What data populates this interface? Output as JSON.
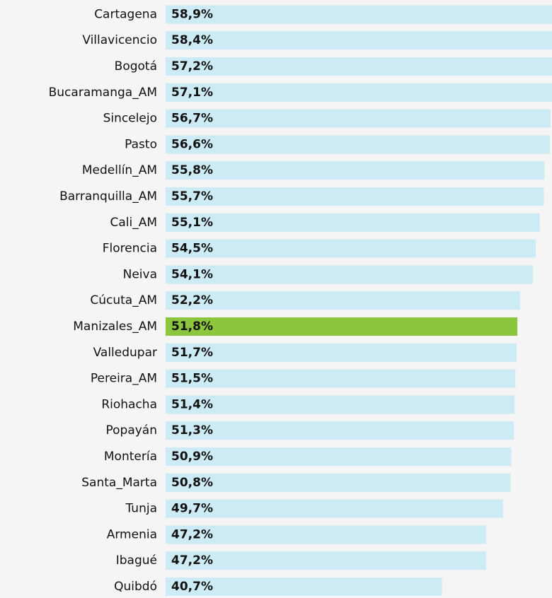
{
  "chart_data": {
    "type": "bar",
    "orientation": "horizontal",
    "categories": [
      "Cartagena",
      "Villavicencio",
      "Bogotá",
      "Bucaramanga_AM",
      "Sincelejo",
      "Pasto",
      "Medellín_AM",
      "Barranquilla_AM",
      "Cali_AM",
      "Florencia",
      "Neiva",
      "Cúcuta_AM",
      "Manizales_AM",
      "Valledupar",
      "Pereira_AM",
      "Riohacha",
      "Popayán",
      "Montería",
      "Santa_Marta",
      "Tunja",
      "Armenia",
      "Ibagué",
      "Quibdó"
    ],
    "values": [
      58.9,
      58.4,
      57.2,
      57.1,
      56.7,
      56.6,
      55.8,
      55.7,
      55.1,
      54.5,
      54.1,
      52.2,
      51.8,
      51.7,
      51.5,
      51.4,
      51.3,
      50.9,
      50.8,
      49.7,
      47.2,
      47.2,
      40.7
    ],
    "value_labels": [
      "58,9%",
      "58,4%",
      "57,2%",
      "57,1%",
      "56,7%",
      "56,6%",
      "55,8%",
      "55,7%",
      "55,1%",
      "54,5%",
      "54,1%",
      "52,2%",
      "51,8%",
      "51,7%",
      "51,5%",
      "51,4%",
      "51,3%",
      "50,9%",
      "50,8%",
      "49,7%",
      "47,2%",
      "47,2%",
      "40,7%"
    ],
    "colors": [
      "#cdebf5",
      "#cdebf5",
      "#cdebf5",
      "#cdebf5",
      "#cdebf5",
      "#cdebf5",
      "#cdebf5",
      "#cdebf5",
      "#cdebf5",
      "#cdebf5",
      "#cdebf5",
      "#cdebf5",
      "#8cc63f",
      "#cdebf5",
      "#cdebf5",
      "#cdebf5",
      "#cdebf5",
      "#cdebf5",
      "#cdebf5",
      "#cdebf5",
      "#cdebf5",
      "#cdebf5",
      "#cdebf5"
    ],
    "xlim": [
      0,
      56.9
    ]
  }
}
